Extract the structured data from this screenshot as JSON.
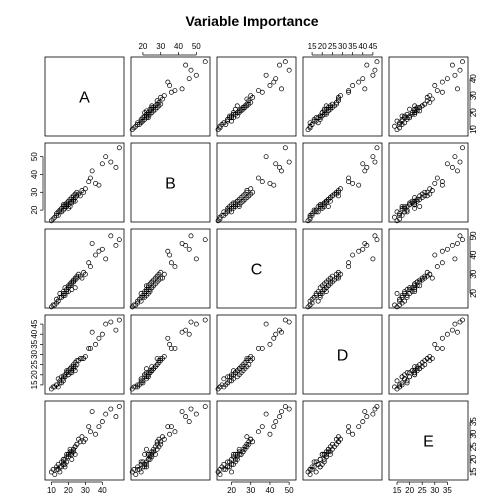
{
  "chart_data": {
    "type": "scatter",
    "title": "Variable Importance",
    "variables": [
      {
        "name": "A",
        "ticks": [
          10,
          20,
          30,
          40
        ],
        "range": [
          8,
          51
        ]
      },
      {
        "name": "B",
        "ticks": [
          20,
          30,
          40,
          50
        ],
        "range": [
          15,
          56
        ]
      },
      {
        "name": "C",
        "ticks": [
          20,
          30,
          40,
          50
        ],
        "range": [
          14,
          52
        ]
      },
      {
        "name": "D",
        "ticks": [
          15,
          20,
          25,
          30,
          35,
          40,
          45
        ],
        "range": [
          12,
          48
        ]
      },
      {
        "name": "E",
        "ticks": [
          15,
          20,
          25,
          30,
          35
        ],
        "range": [
          13,
          42
        ]
      }
    ],
    "observations": [
      [
        12,
        16,
        14,
        14,
        14
      ],
      [
        13,
        18,
        17,
        15,
        16
      ],
      [
        14,
        17,
        16,
        14,
        16
      ],
      [
        15,
        20,
        18,
        16,
        17
      ],
      [
        15,
        19,
        20,
        17,
        15
      ],
      [
        16,
        21,
        18,
        19,
        17
      ],
      [
        17,
        20,
        19,
        17,
        19
      ],
      [
        17,
        22,
        21,
        18,
        18
      ],
      [
        18,
        21,
        20,
        20,
        18
      ],
      [
        18,
        23,
        23,
        19,
        20
      ],
      [
        19,
        22,
        22,
        21,
        19
      ],
      [
        19,
        24,
        21,
        22,
        21
      ],
      [
        20,
        23,
        24,
        20,
        22
      ],
      [
        20,
        25,
        23,
        22,
        21
      ],
      [
        21,
        24,
        25,
        21,
        22
      ],
      [
        21,
        26,
        24,
        23,
        23
      ],
      [
        22,
        25,
        26,
        22,
        23
      ],
      [
        22,
        27,
        25,
        24,
        22
      ],
      [
        23,
        26,
        27,
        23,
        24
      ],
      [
        23,
        28,
        26,
        25,
        24
      ],
      [
        24,
        27,
        28,
        24,
        25
      ],
      [
        24,
        29,
        27,
        26,
        25
      ],
      [
        25,
        28,
        29,
        25,
        26
      ],
      [
        25,
        30,
        28,
        27,
        26
      ],
      [
        14,
        19,
        16,
        18,
        18
      ],
      [
        16,
        19,
        18,
        16,
        19
      ],
      [
        18,
        22,
        19,
        19,
        17
      ],
      [
        20,
        21,
        21,
        20,
        22
      ],
      [
        22,
        24,
        22,
        21,
        20
      ],
      [
        24,
        25,
        23,
        22,
        22
      ],
      [
        26,
        29,
        30,
        27,
        28
      ],
      [
        27,
        28,
        29,
        28,
        27
      ],
      [
        28,
        31,
        28,
        28,
        29
      ],
      [
        29,
        30,
        31,
        28,
        27
      ],
      [
        30,
        32,
        30,
        29,
        28
      ],
      [
        13,
        17,
        15,
        15,
        17
      ],
      [
        17,
        23,
        20,
        19,
        20
      ],
      [
        21,
        22,
        24,
        23,
        24
      ],
      [
        19,
        23,
        22,
        21,
        22
      ],
      [
        23,
        25,
        26,
        24,
        23
      ],
      [
        32,
        36,
        36,
        33,
        33
      ],
      [
        33,
        38,
        34,
        33,
        31
      ],
      [
        36,
        35,
        40,
        35,
        30
      ],
      [
        38,
        34,
        42,
        38,
        33
      ],
      [
        40,
        46,
        43,
        40,
        35
      ],
      [
        42,
        50,
        38,
        45,
        38
      ],
      [
        45,
        47,
        50,
        46,
        40
      ],
      [
        48,
        44,
        45,
        42,
        37
      ],
      [
        34,
        42,
        46,
        41,
        39
      ],
      [
        50,
        55,
        48,
        47,
        41
      ],
      [
        10,
        14,
        13,
        13,
        15
      ],
      [
        11,
        15,
        14,
        14,
        16
      ]
    ]
  }
}
